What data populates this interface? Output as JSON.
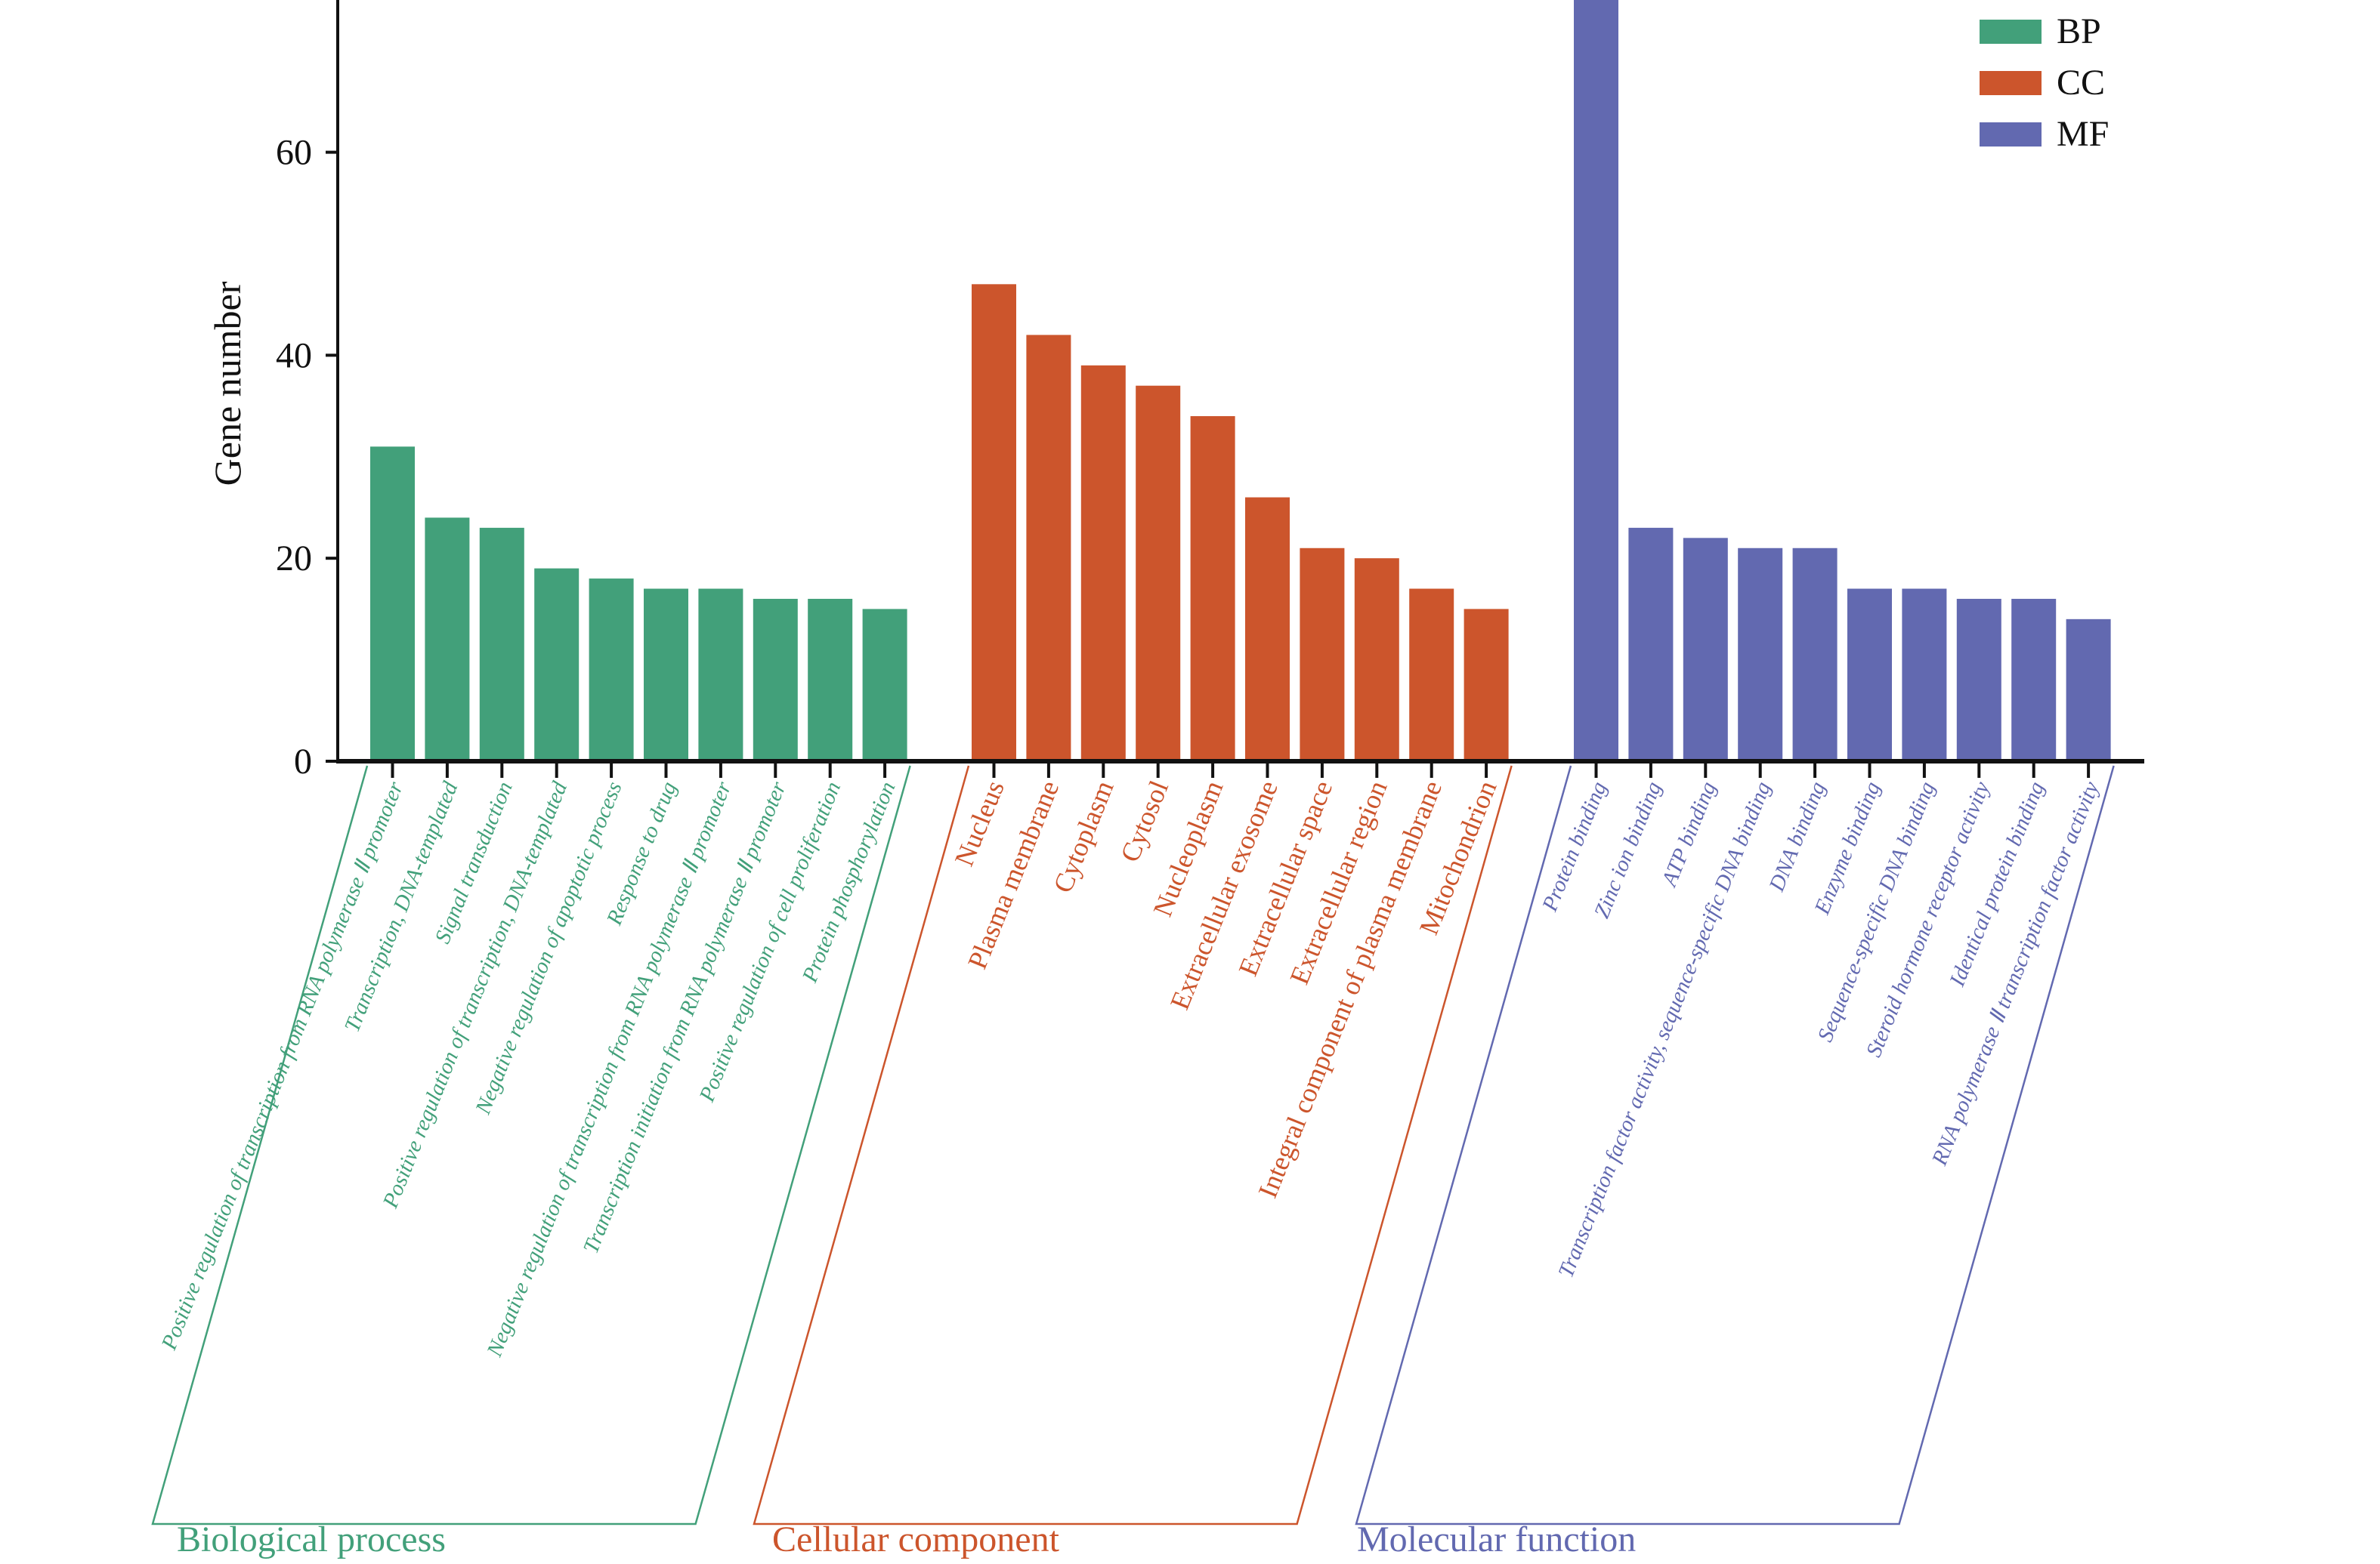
{
  "chart_data": {
    "type": "bar",
    "ylabel": "Gene number",
    "xlabel": "",
    "ylim": [
      0,
      75
    ],
    "yticks": [
      0,
      20,
      40,
      60
    ],
    "grid": false,
    "legend_position": "top-right",
    "legend": [
      "BP",
      "CC",
      "MF"
    ],
    "series": [
      {
        "name": "BP",
        "group_label": "Biological process",
        "color": "#42a07a",
        "categories": [
          "Positive regulation of transcription from RNA polymerase Ⅱ promoter",
          "Transcription, DNA-templated",
          "Signal transduction",
          "Positive regulation of transcription, DNA-templated",
          "Negative regulation of apoptotic process",
          "Response to drug",
          "Negative regulation of transcription from RNA polymerase Ⅱ promoter",
          "Transcription initiation from RNA polymerase Ⅱ promoter",
          "Positive regulation of cell proliferation",
          "Protein phosphorylation"
        ],
        "values": [
          31,
          24,
          23,
          19,
          18,
          17,
          17,
          16,
          16,
          15
        ]
      },
      {
        "name": "CC",
        "group_label": "Cellular component",
        "color": "#cc552c",
        "categories": [
          "Nucleus",
          "Plasma membrane",
          "Cytoplasm",
          "Cytosol",
          "Nucleoplasm",
          "Extracellular exosome",
          "Extracellular space",
          "Extracellular region",
          "Integral component of plasma membrane",
          "Mitochondrion"
        ],
        "values": [
          47,
          42,
          39,
          37,
          34,
          26,
          21,
          20,
          17,
          15
        ]
      },
      {
        "name": "MF",
        "group_label": "Molecular function",
        "color": "#6269b0",
        "categories": [
          "Protein binding",
          "Zinc ion binding",
          "ATP binding",
          "Transcription factor activity, sequence-specific DNA binding",
          "DNA binding",
          "Enzyme binding",
          "Sequence-specific DNA binding",
          "Steroid hormone receptor activity",
          "Identical protein binding",
          "RNA polymerase Ⅱ transcription factor activity"
        ],
        "values": [
          75,
          23,
          22,
          21,
          21,
          17,
          17,
          16,
          16,
          14
        ]
      }
    ]
  }
}
